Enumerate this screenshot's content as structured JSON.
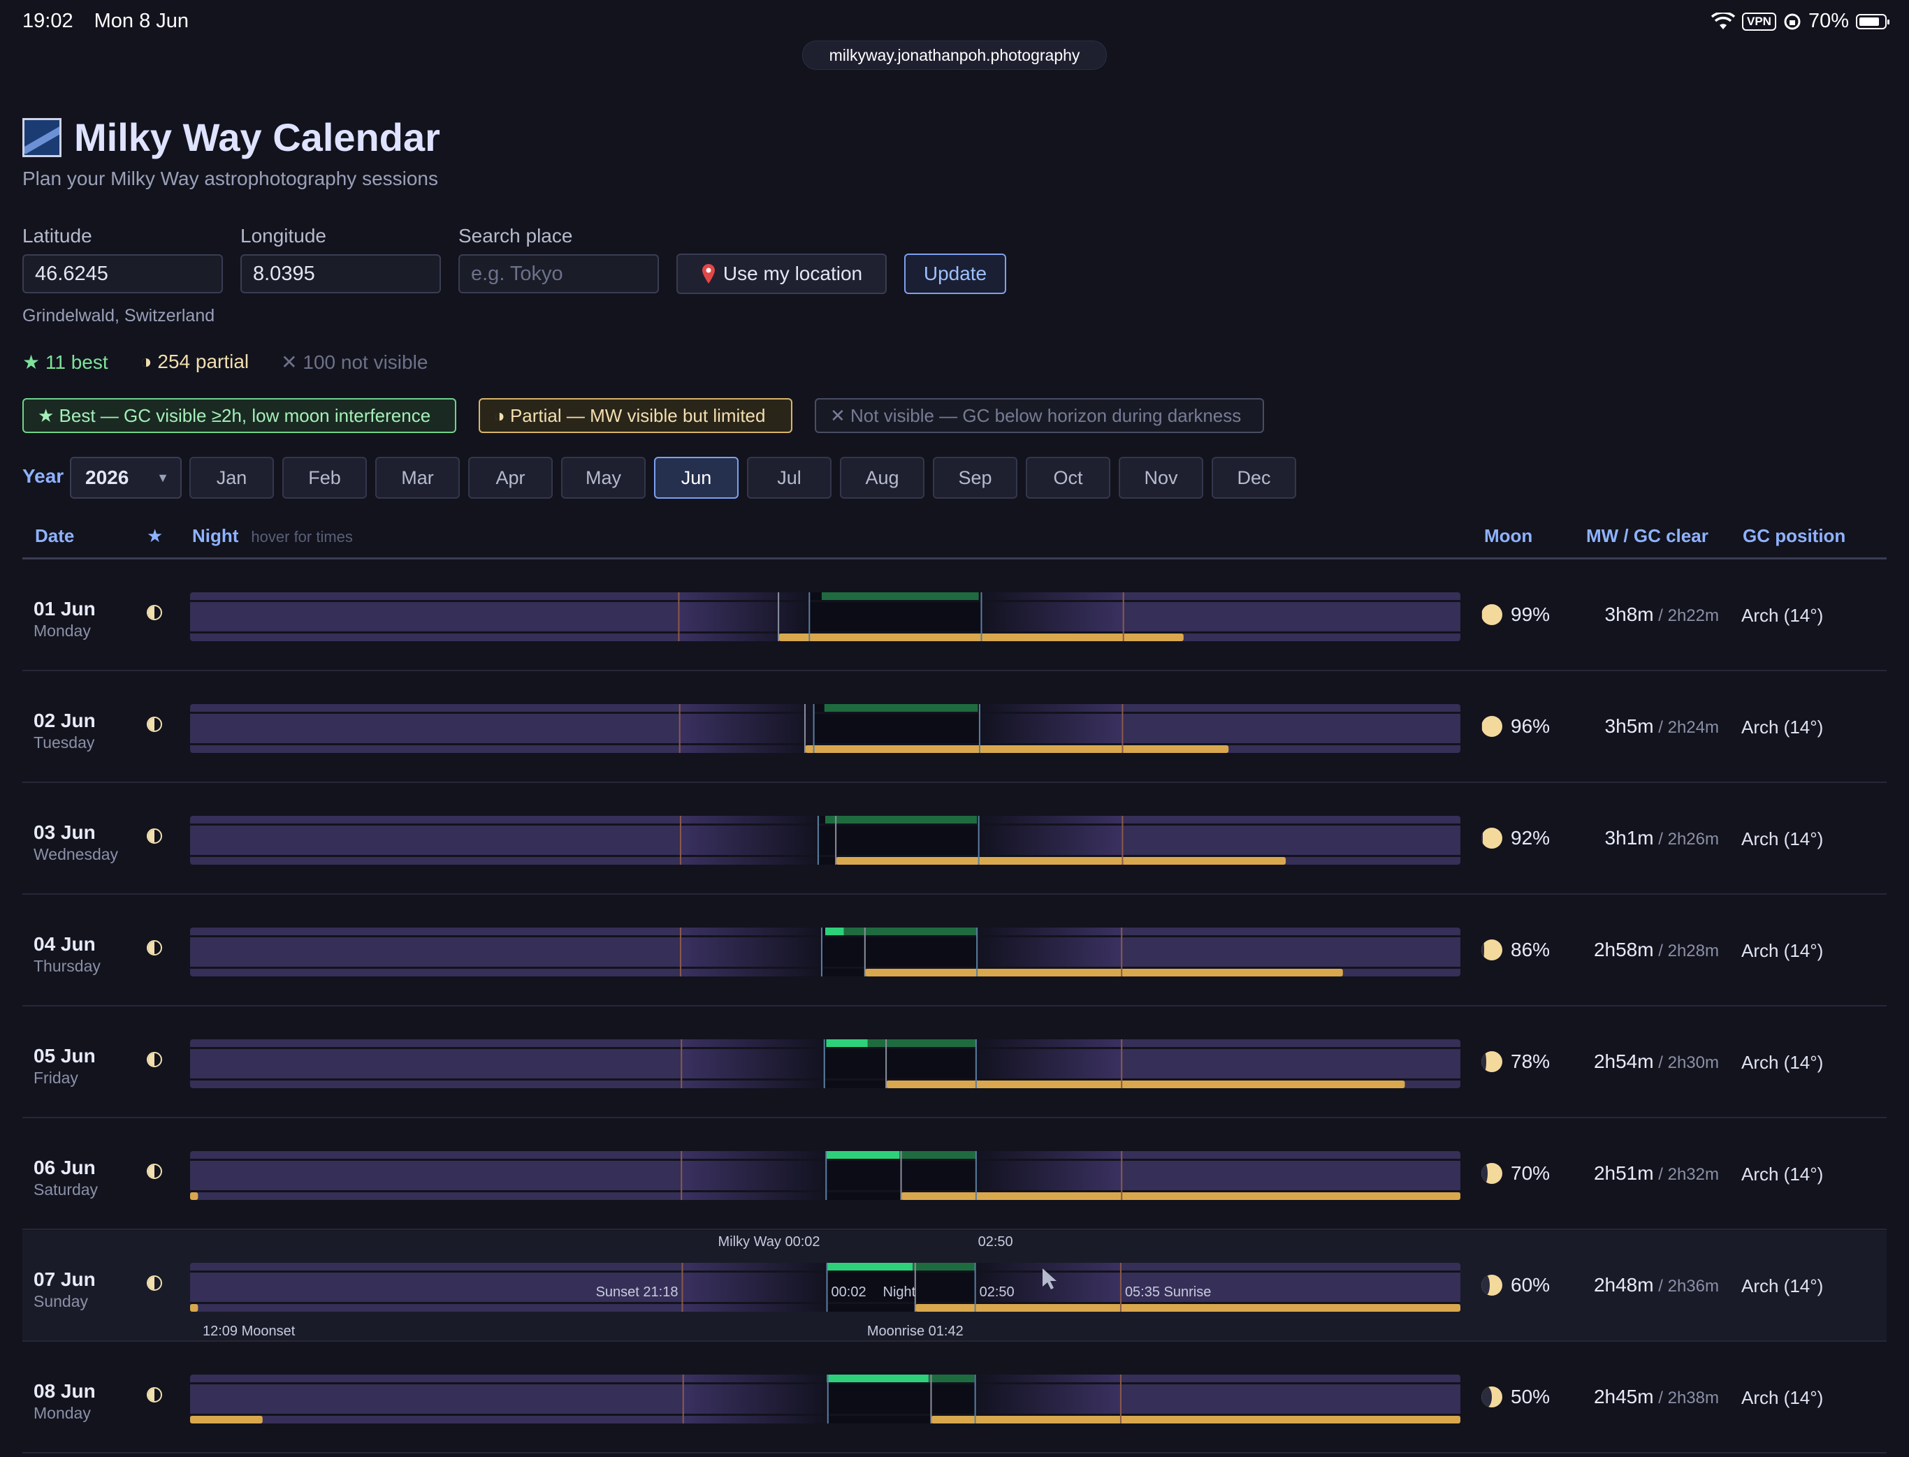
{
  "status_bar": {
    "time": "19:02",
    "date": "Mon 8 Jun",
    "vpn": "VPN",
    "battery": "70%"
  },
  "url": "milkyway.jonathanpoh.photography",
  "header": {
    "title": "Milky Way Calendar",
    "subtitle": "Plan your Milky Way astrophotography sessions"
  },
  "form": {
    "latitude_label": "Latitude",
    "latitude_value": "46.6245",
    "longitude_label": "Longitude",
    "longitude_value": "8.0395",
    "search_label": "Search place",
    "search_placeholder": "e.g. Tokyo",
    "use_location_label": "Use my location",
    "update_label": "Update",
    "place_name": "Grindelwald, Switzerland"
  },
  "summary": {
    "best": "11 best",
    "partial": "254 partial",
    "not_visible": "100 not visible"
  },
  "legend": {
    "best": "Best — GC visible ≥2h, low moon interference",
    "partial": "Partial — MW visible but limited",
    "not_visible": "Not visible — GC below horizon during darkness"
  },
  "month_bar": {
    "year_label": "Year",
    "year": "2026",
    "months": [
      "Jan",
      "Feb",
      "Mar",
      "Apr",
      "May",
      "Jun",
      "Jul",
      "Aug",
      "Sep",
      "Oct",
      "Nov",
      "Dec"
    ],
    "active": "Jun"
  },
  "columns": {
    "date": "Date",
    "star": "★",
    "night": "Night",
    "night_hint": "hover for times",
    "moon": "Moon",
    "clear": "MW / GC clear",
    "gc_position": "GC position"
  },
  "colors": {
    "night_band": "#362f57",
    "dark": "#0c0c16",
    "gc_green": "#1f6b40",
    "gc_best": "#2ed17a",
    "moon_gold": "#d9a84e",
    "accent": "#8fb2ff"
  },
  "timeline_hours": {
    "start": "12:00",
    "end": "12:00"
  },
  "rows": [
    {
      "date": "01 Jun",
      "day": "Monday",
      "status": "partial",
      "moon_pct": "99%",
      "moon_illum": 0.99,
      "mw_clear": "3h8m",
      "gc_clear": "2h22m",
      "gc_position": "Arch (14°)",
      "times": {
        "sunset": "21:14",
        "night_start": "23:42",
        "night_end": "02:57",
        "sunrise": "05:38",
        "mw_start": "23:56",
        "mw_end": "02:54",
        "moonrise": "23:07",
        "moonset": "06:46",
        "moon_above": [
          [
            23.12,
            30.77
          ]
        ],
        "gc_best": []
      }
    },
    {
      "date": "02 Jun",
      "day": "Tuesday",
      "status": "partial",
      "moon_pct": "96%",
      "moon_illum": 0.96,
      "mw_clear": "3h5m",
      "gc_clear": "2h24m",
      "gc_position": "Arch (14°)",
      "times": {
        "sunset": "21:15",
        "night_start": "23:47",
        "night_end": "02:55",
        "sunrise": "05:37",
        "mw_start": "23:59",
        "mw_end": "02:53",
        "moonrise": "23:37",
        "moonset": "07:37",
        "moon_above": [
          [
            23.62,
            31.62
          ]
        ],
        "gc_best": []
      }
    },
    {
      "date": "03 Jun",
      "day": "Wednesday",
      "status": "partial",
      "moon_pct": "92%",
      "moon_illum": 0.92,
      "mw_clear": "3h1m",
      "gc_clear": "2h26m",
      "gc_position": "Arch (14°)",
      "times": {
        "sunset": "21:16",
        "night_start": "23:52",
        "night_end": "02:54",
        "sunrise": "05:37",
        "mw_start": "24:00",
        "mw_end": "02:52",
        "moonrise": "00:12",
        "moonset": "08:42",
        "moon_above": [
          [
            24.2,
            32.7
          ]
        ],
        "gc_best": []
      }
    },
    {
      "date": "04 Jun",
      "day": "Thursday",
      "status": "partial",
      "moon_pct": "86%",
      "moon_illum": 0.86,
      "mw_clear": "2h58m",
      "gc_clear": "2h28m",
      "gc_position": "Arch (14°)",
      "times": {
        "sunset": "21:16",
        "night_start": "23:56",
        "night_end": "02:52",
        "sunrise": "05:36",
        "mw_start": "00:00",
        "mw_end": "02:52",
        "moonrise": "00:45",
        "moonset": "09:47",
        "moon_above": [
          [
            24.75,
            33.78
          ]
        ],
        "gc_best": [
          [
            24.0,
            24.35
          ]
        ]
      }
    },
    {
      "date": "05 Jun",
      "day": "Friday",
      "status": "partial",
      "moon_pct": "78%",
      "moon_illum": 0.78,
      "mw_clear": "2h54m",
      "gc_clear": "2h30m",
      "gc_position": "Arch (14°)",
      "times": {
        "sunset": "21:17",
        "night_start": "23:59",
        "night_end": "02:51",
        "sunrise": "05:36",
        "mw_start": "00:01",
        "mw_end": "02:51",
        "moonrise": "01:09",
        "moonset": "10:57",
        "moon_above": [
          [
            25.15,
            34.95
          ]
        ],
        "gc_best": [
          [
            24.02,
            24.8
          ]
        ]
      }
    },
    {
      "date": "06 Jun",
      "day": "Saturday",
      "status": "partial",
      "moon_pct": "70%",
      "moon_illum": 0.7,
      "mw_clear": "2h51m",
      "gc_clear": "2h32m",
      "gc_position": "Arch (14°)",
      "times": {
        "sunset": "21:17",
        "night_start": "00:01",
        "night_end": "02:51",
        "sunrise": "05:36",
        "mw_start": "00:01",
        "mw_end": "02:51",
        "moonrise": "01:26",
        "moonset": "12:09",
        "moon_above": [
          [
            12.0,
            12.15
          ],
          [
            25.43,
            36.0
          ]
        ],
        "gc_best": [
          [
            24.02,
            25.4
          ]
        ]
      }
    },
    {
      "date": "07 Jun",
      "day": "Sunday",
      "status": "partial",
      "moon_pct": "60%",
      "moon_illum": 0.6,
      "mw_clear": "2h48m",
      "gc_clear": "2h36m",
      "gc_position": "Arch (14°)",
      "times": {
        "sunset": "21:18",
        "night_start": "00:02",
        "night_end": "02:50",
        "sunrise": "05:35",
        "mw_start": "00:02",
        "mw_end": "02:50",
        "moonrise": "01:42",
        "moonset": "12:09",
        "moon_above": [
          [
            12.0,
            12.15
          ],
          [
            25.7,
            36.0
          ]
        ],
        "gc_best": [
          [
            24.03,
            25.65
          ]
        ]
      },
      "tooltip": {
        "mw": "Milky Way 00:02",
        "mw_end": "02:50",
        "sunset": "Sunset 21:18",
        "night_start": "00:02",
        "night": "Night",
        "night_end": "02:50",
        "sunrise": "05:35 Sunrise",
        "moonset": "12:09 Moonset",
        "moonrise": "Moonrise 01:42"
      }
    },
    {
      "date": "08 Jun",
      "day": "Monday",
      "status": "partial",
      "moon_pct": "50%",
      "moon_illum": 0.5,
      "mw_clear": "2h45m",
      "gc_clear": "2h38m",
      "gc_position": "Arch (14°)",
      "times": {
        "sunset": "21:19",
        "night_start": "00:03",
        "night_end": "02:50",
        "sunrise": "05:35",
        "mw_start": "00:03",
        "mw_end": "02:49",
        "moonrise": "02:00",
        "moonset": "13:22",
        "moon_above": [
          [
            12.0,
            13.37
          ],
          [
            26.0,
            36.0
          ]
        ],
        "gc_best": [
          [
            24.03,
            25.95
          ]
        ]
      }
    }
  ]
}
